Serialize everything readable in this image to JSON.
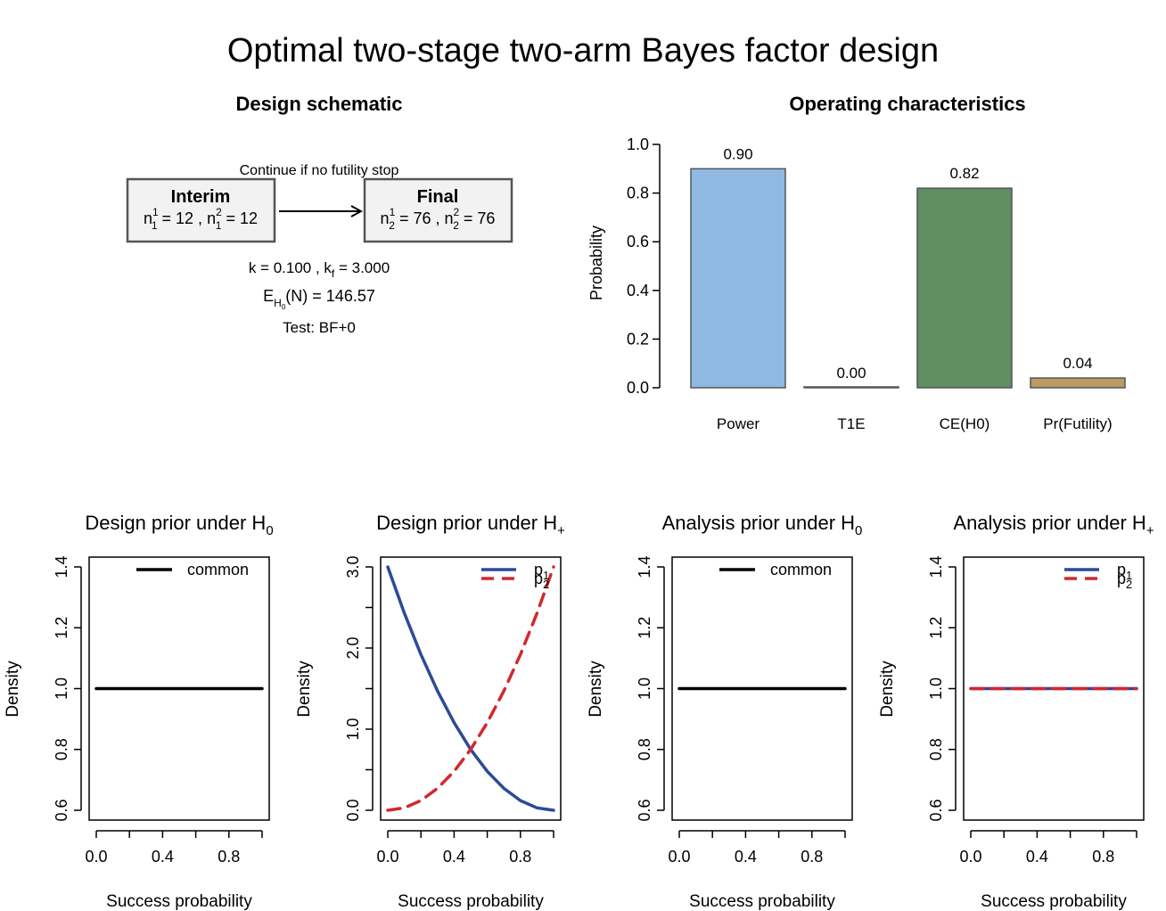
{
  "title": "Optimal two-stage two-arm Bayes factor design",
  "colors": {
    "p1": "#2c4a96",
    "p2": "#d1282e",
    "common": "#000000",
    "bar_power": "#8fb8e3",
    "bar_t1e": "#666666",
    "bar_ce": "#5e8e61",
    "bar_fut": "#b99b63",
    "box_fill": "#f2f2f2",
    "box_border": "#555555"
  },
  "schematic": {
    "title": "Design schematic",
    "arrow_label": "Continue if no futility stop",
    "interim": {
      "title": "Interim",
      "sub1": "1",
      "sup1": "1",
      "v1": "12",
      "sub2": "1",
      "sup2": "2",
      "v2": "12"
    },
    "final": {
      "title": "Final",
      "sub1": "2",
      "sup1": "1",
      "v1": "76",
      "sub2": "2",
      "sup2": "2",
      "v2": "76"
    },
    "k_value": "0.100",
    "kf_value": "3.000",
    "expected_n": "146.57",
    "test": "Test: BF+0"
  },
  "chart_data": [
    {
      "type": "bar",
      "title": "Operating characteristics",
      "ylabel": "Probability",
      "categories": [
        "Power",
        "T1E",
        "CE(H0)",
        "Pr(Futility)"
      ],
      "values": [
        0.9,
        0.0,
        0.82,
        0.04
      ],
      "data_labels": [
        "0.90",
        "0.00",
        "0.82",
        "0.04"
      ],
      "ylim": [
        0,
        1.0
      ],
      "yticks": [
        "0.0",
        "0.2",
        "0.4",
        "0.6",
        "0.8",
        "1.0"
      ]
    },
    {
      "type": "line",
      "title": "Design prior under H",
      "title_sub": "0",
      "xlabel": "Success probability",
      "ylabel": "Density",
      "xlim": [
        0,
        1
      ],
      "ylim": [
        0.6,
        1.4
      ],
      "xticks": [
        "0.0",
        "0.4",
        "0.8"
      ],
      "yticks": [
        "0.6",
        "0.8",
        "1.0",
        "1.2",
        "1.4"
      ],
      "legend": "top-right",
      "series": [
        {
          "name": "common",
          "dash": "solid",
          "color": "common",
          "x": [
            0,
            1
          ],
          "y": [
            1,
            1
          ]
        }
      ]
    },
    {
      "type": "line",
      "title": "Design prior under H",
      "title_sub": "+",
      "xlabel": "Success probability",
      "ylabel": "Density",
      "xlim": [
        0,
        1
      ],
      "ylim": [
        0,
        3
      ],
      "xticks": [
        "0.0",
        "0.4",
        "0.8"
      ],
      "yticks": [
        "0.0",
        "1.0",
        "2.0",
        "3.0"
      ],
      "legend": "top-right",
      "series": [
        {
          "name": "p",
          "name_sub": "1",
          "dash": "solid",
          "color": "p1",
          "x": [
            0,
            0.1,
            0.2,
            0.3,
            0.4,
            0.5,
            0.6,
            0.7,
            0.8,
            0.9,
            1.0
          ],
          "y": [
            3.0,
            2.43,
            1.92,
            1.47,
            1.08,
            0.75,
            0.48,
            0.27,
            0.12,
            0.03,
            0.0
          ]
        },
        {
          "name": "p",
          "name_sub": "2",
          "dash": "dashed",
          "color": "p2",
          "x": [
            0,
            0.1,
            0.2,
            0.3,
            0.4,
            0.5,
            0.6,
            0.7,
            0.8,
            0.9,
            1.0
          ],
          "y": [
            0.0,
            0.03,
            0.12,
            0.27,
            0.48,
            0.75,
            1.08,
            1.47,
            1.92,
            2.43,
            3.0
          ]
        }
      ]
    },
    {
      "type": "line",
      "title": "Analysis prior under H",
      "title_sub": "0",
      "xlabel": "Success probability",
      "ylabel": "Density",
      "xlim": [
        0,
        1
      ],
      "ylim": [
        0.6,
        1.4
      ],
      "xticks": [
        "0.0",
        "0.4",
        "0.8"
      ],
      "yticks": [
        "0.6",
        "0.8",
        "1.0",
        "1.2",
        "1.4"
      ],
      "legend": "top-right",
      "series": [
        {
          "name": "common",
          "dash": "solid",
          "color": "common",
          "x": [
            0,
            1
          ],
          "y": [
            1,
            1
          ]
        }
      ]
    },
    {
      "type": "line",
      "title": "Analysis prior under H",
      "title_sub": "+",
      "xlabel": "Success probability",
      "ylabel": "Density",
      "xlim": [
        0,
        1
      ],
      "ylim": [
        0.6,
        1.4
      ],
      "xticks": [
        "0.0",
        "0.4",
        "0.8"
      ],
      "yticks": [
        "0.6",
        "0.8",
        "1.0",
        "1.2",
        "1.4"
      ],
      "legend": "top-right",
      "series": [
        {
          "name": "p",
          "name_sub": "1",
          "dash": "solid",
          "color": "p1",
          "x": [
            0,
            1
          ],
          "y": [
            1,
            1
          ]
        },
        {
          "name": "p",
          "name_sub": "2",
          "dash": "dashed",
          "color": "p2",
          "x": [
            0,
            1
          ],
          "y": [
            1,
            1
          ]
        }
      ]
    }
  ]
}
